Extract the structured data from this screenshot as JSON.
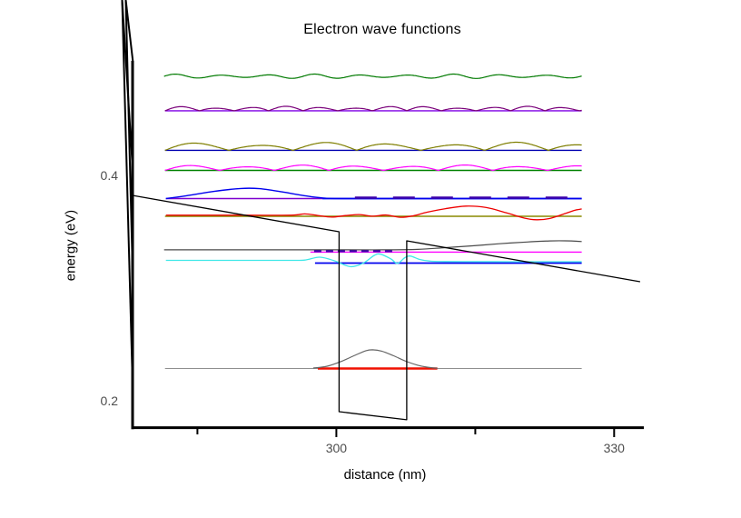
{
  "window": {
    "background": "#ffffff"
  },
  "chart_data": {
    "type": "line",
    "title": "Electron wave functions",
    "xlabel": "distance (nm)",
    "ylabel": "energy (eV)",
    "xlim": [
      277.9,
      333.3
    ],
    "ylim": [
      0.1758,
      0.5032
    ],
    "grid": false,
    "legend": null,
    "axis_color": "#000000",
    "tick_label_color": "#4d4d4d",
    "tick_label_font_px": 14,
    "x_ticks": [
      {
        "value": 285,
        "minor": true
      },
      {
        "value": 300,
        "label": "300"
      },
      {
        "value": 315,
        "minor": true
      },
      {
        "value": 330,
        "label": "330"
      }
    ],
    "y_ticks": [
      {
        "value": 0.2,
        "label": "0.2"
      },
      {
        "value": 0.3,
        "minor": true
      },
      {
        "value": 0.4,
        "label": "0.4"
      },
      {
        "value": 0.5,
        "minor": true
      }
    ],
    "energy_levels_eV": [
      0.2286,
      0.3222,
      0.3319,
      0.3637,
      0.3794,
      0.4044,
      0.4222,
      0.4573,
      0.4879
    ],
    "quantum_well": {
      "left_wall_nm": 300.3,
      "right_wall_nm": 307.6,
      "bottom_eV": [
        0.1903,
        0.1831
      ],
      "wall_top_eV": [
        0.35,
        0.3419
      ],
      "field_slope_eV_per_nm": -0.00143
    },
    "series": [
      {
        "name": "state8-level-line",
        "kind": "polyline",
        "color": "#7f00e6",
        "width": 1.4,
        "points": [
          [
            281.5,
            0.4573
          ],
          [
            326.5,
            0.4573
          ]
        ]
      },
      {
        "name": "state7-level-line",
        "kind": "polyline",
        "color": "#0000b0",
        "width": 1.4,
        "points": [
          [
            281.5,
            0.4222
          ],
          [
            326.5,
            0.4222
          ]
        ]
      },
      {
        "name": "state6-level-line",
        "kind": "polyline",
        "color": "#008000",
        "width": 1.4,
        "points": [
          [
            281.5,
            0.4044
          ],
          [
            326.5,
            0.4044
          ]
        ]
      },
      {
        "name": "state5-level-line-left",
        "kind": "polyline",
        "color": "#7d00cf",
        "width": 1.4,
        "points": [
          [
            281.6,
            0.3794
          ],
          [
            298.5,
            0.3794
          ]
        ]
      },
      {
        "name": "state5-level-line-right",
        "kind": "polyline",
        "color": "#0000ee",
        "width": 1.8,
        "points": [
          [
            298.5,
            0.3794
          ],
          [
            326.5,
            0.3794
          ]
        ]
      },
      {
        "name": "state4-level-line",
        "kind": "polyline",
        "color": "#8a8a00",
        "width": 1.4,
        "points": [
          [
            281.5,
            0.3637
          ],
          [
            326.5,
            0.3637
          ]
        ]
      },
      {
        "name": "state3-level-line",
        "kind": "polyline",
        "color": "#ff00ff",
        "width": 1.4,
        "points": [
          [
            297.2,
            0.3319
          ],
          [
            326.5,
            0.3319
          ]
        ]
      },
      {
        "name": "state2-level-line",
        "kind": "polyline",
        "color": "#0000ee",
        "width": 1.8,
        "points": [
          [
            297.7,
            0.3222
          ],
          [
            326.5,
            0.3222
          ]
        ]
      },
      {
        "name": "state1-level-line",
        "kind": "polyline",
        "color": "#8f8f8f",
        "width": 1,
        "points": [
          [
            281.5,
            0.2286
          ],
          [
            326.5,
            0.2286
          ]
        ]
      },
      {
        "name": "state1-level-segment-red",
        "kind": "polyline",
        "color": "#f01000",
        "width": 2.4,
        "points": [
          [
            298.0,
            0.2286
          ],
          [
            310.9,
            0.2286
          ]
        ]
      },
      {
        "name": "state9-wavefunction",
        "kind": "ripple",
        "color": "#007a00",
        "width": 1.2,
        "x0": 281.4,
        "x1": 326.5,
        "energy_eV": 0.4879,
        "amp_eV": 0.002,
        "period_nm": 5.0,
        "mod_period_nm": 16,
        "mod_depth": 0.55
      },
      {
        "name": "state8-wavefunction",
        "kind": "lobes",
        "color": "#7a007a",
        "width": 1.2,
        "x0": 281.5,
        "x1": 326.5,
        "energy_eV": 0.4573,
        "amp_eV": 0.004,
        "lobe_nm": 3.73,
        "mod_period_nm": 13,
        "mod_depth": 0.45
      },
      {
        "name": "state7-wavefunction",
        "kind": "lobes",
        "color": "#7e7e00",
        "width": 1.2,
        "x0": 281.5,
        "x1": 326.5,
        "energy_eV": 0.4222,
        "amp_eV": 0.0072,
        "lobe_nm": 6.9,
        "mod_period_nm": 19,
        "mod_depth": 0.4
      },
      {
        "name": "state6-wavefunction",
        "kind": "lobes",
        "color": "#ff00ff",
        "width": 1.2,
        "x0": 281.5,
        "x1": 326.5,
        "energy_eV": 0.4044,
        "amp_eV": 0.0048,
        "lobe_nm": 5.9,
        "mod_period_nm": 16,
        "mod_depth": 0.35
      },
      {
        "name": "state5-wavefunction",
        "kind": "smooth",
        "color": "#0000ee",
        "width": 1.4,
        "points": [
          [
            281.6,
            0.3794
          ],
          [
            283.8,
            0.3819
          ],
          [
            286.8,
            0.3858
          ],
          [
            289.7,
            0.3884
          ],
          [
            291.7,
            0.3882
          ],
          [
            294.1,
            0.3854
          ],
          [
            296.6,
            0.3819
          ],
          [
            298.5,
            0.38
          ],
          [
            300.8,
            0.3794
          ],
          [
            310,
            0.3794
          ],
          [
            326.5,
            0.3794
          ]
        ]
      },
      {
        "name": "state4-wavefunction",
        "kind": "smooth",
        "color": "#ee0000",
        "width": 1.3,
        "points": [
          [
            281.6,
            0.3647
          ],
          [
            290,
            0.3647
          ],
          [
            295.1,
            0.3647
          ],
          [
            296.6,
            0.3658
          ],
          [
            298,
            0.3644
          ],
          [
            299.5,
            0.363
          ],
          [
            301,
            0.3643
          ],
          [
            302.5,
            0.3652
          ],
          [
            303.9,
            0.3638
          ],
          [
            305.4,
            0.3648
          ],
          [
            306.9,
            0.3628
          ],
          [
            308.3,
            0.3641
          ],
          [
            309.8,
            0.3673
          ],
          [
            311.8,
            0.3705
          ],
          [
            314,
            0.3727
          ],
          [
            316.2,
            0.3714
          ],
          [
            318.3,
            0.3669
          ],
          [
            320.3,
            0.3621
          ],
          [
            321.6,
            0.3606
          ],
          [
            323,
            0.3617
          ],
          [
            324.7,
            0.3661
          ],
          [
            325.8,
            0.3691
          ],
          [
            326.5,
            0.3702
          ]
        ]
      },
      {
        "name": "state3-wavefunction",
        "kind": "smooth",
        "color": "#4a4a4a",
        "width": 1.2,
        "points": [
          [
            281.4,
            0.3339
          ],
          [
            290,
            0.3339
          ],
          [
            300,
            0.3339
          ],
          [
            305,
            0.3339
          ],
          [
            308.8,
            0.3343
          ],
          [
            311.8,
            0.3359
          ],
          [
            314.7,
            0.3375
          ],
          [
            317.6,
            0.3393
          ],
          [
            320.6,
            0.3409
          ],
          [
            323,
            0.3418
          ],
          [
            324.7,
            0.3419
          ],
          [
            326.5,
            0.3413
          ]
        ]
      },
      {
        "name": "state2-wavefunction",
        "kind": "smooth",
        "color": "#40e8e8",
        "width": 1.3,
        "points": [
          [
            281.6,
            0.3246
          ],
          [
            290,
            0.3246
          ],
          [
            295.1,
            0.3246
          ],
          [
            296.6,
            0.3248
          ],
          [
            298.2,
            0.3274
          ],
          [
            299.8,
            0.3242
          ],
          [
            301.5,
            0.319
          ],
          [
            302.9,
            0.3222
          ],
          [
            304.1,
            0.329
          ],
          [
            304.8,
            0.33
          ],
          [
            305.9,
            0.3258
          ],
          [
            306.6,
            0.3219
          ],
          [
            307.4,
            0.327
          ],
          [
            308,
            0.3284
          ],
          [
            309,
            0.3254
          ],
          [
            310,
            0.324
          ],
          [
            311.8,
            0.3235
          ],
          [
            318.6,
            0.3234
          ],
          [
            326.5,
            0.3234
          ]
        ]
      },
      {
        "name": "state1-wavefunction",
        "kind": "smooth",
        "color": "#666666",
        "width": 1.2,
        "points": [
          [
            297.5,
            0.229
          ],
          [
            299,
            0.2306
          ],
          [
            300.5,
            0.2348
          ],
          [
            302,
            0.2403
          ],
          [
            303.2,
            0.2444
          ],
          [
            303.9,
            0.2452
          ],
          [
            304.9,
            0.244
          ],
          [
            306.2,
            0.2399
          ],
          [
            307.5,
            0.2351
          ],
          [
            308.8,
            0.2315
          ],
          [
            309.8,
            0.2298
          ],
          [
            310.9,
            0.2288
          ]
        ]
      },
      {
        "name": "state5-level-dashed-overlay",
        "kind": "polyline",
        "color": "#3c00aa",
        "width": 2.4,
        "dash": [
          24,
          18
        ],
        "points": [
          [
            302,
            0.3802
          ],
          [
            326.5,
            0.3802
          ]
        ]
      },
      {
        "name": "state3-level-dashed-overlay",
        "kind": "polyline",
        "color": "#3c00aa",
        "width": 2.2,
        "dash": [
          8,
          5
        ],
        "points": [
          [
            297.6,
            0.3327
          ],
          [
            306.3,
            0.3327
          ]
        ]
      },
      {
        "name": "potential-profile",
        "kind": "polyline",
        "color": "#000000",
        "width": 1.3,
        "points": [
          [
            277.9,
            0.3823
          ],
          [
            300.3,
            0.35
          ],
          [
            300.3,
            0.1903
          ],
          [
            307.6,
            0.1831
          ],
          [
            307.6,
            0.3419
          ],
          [
            332.8,
            0.3056
          ]
        ]
      }
    ]
  }
}
